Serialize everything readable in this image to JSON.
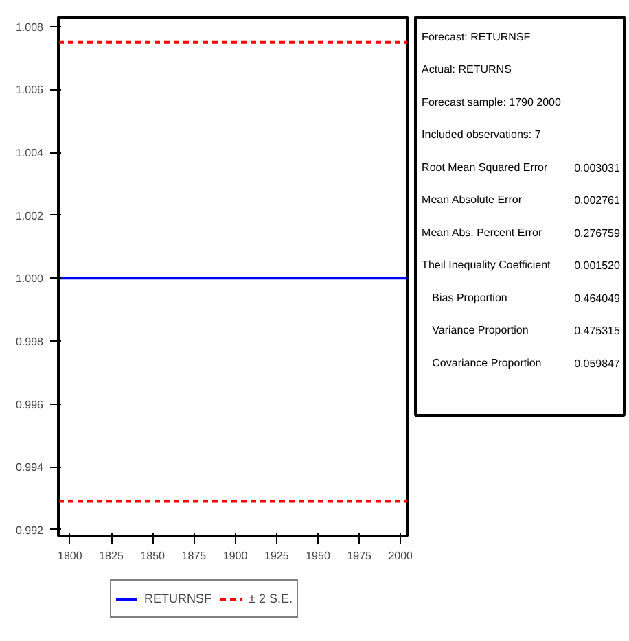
{
  "chart_data": {
    "type": "line",
    "x": [
      1793,
      2004
    ],
    "xlim": [
      1793,
      2004
    ],
    "xticks": [
      1800,
      1825,
      1850,
      1875,
      1900,
      1925,
      1950,
      1975,
      2000
    ],
    "ylim": [
      0.9918,
      1.0083
    ],
    "yticks": [
      0.992,
      0.994,
      0.996,
      0.998,
      {
        "value": 1.0,
        "label": "1.000"
      },
      1.002,
      1.004,
      1.006,
      1.008
    ],
    "series": [
      {
        "name": "RETURNSF",
        "color": "#0000ff",
        "values": [
          1.0,
          1.0
        ],
        "line_style": "solid"
      },
      {
        "name": "± 2 S.E.",
        "color": "#ff0000",
        "values": [
          1.0075,
          1.0075
        ],
        "line_style": "dashed"
      },
      {
        "color": "#ff0000",
        "values": [
          0.9929,
          0.9929
        ],
        "line_style": "dashed"
      }
    ],
    "legend": "bottom",
    "grid": false,
    "annotations": [
      "Forecast: RETURNSF",
      "Actual: RETURNS",
      "Forecast sample: 1790 2000",
      "Included observations: 7",
      "Root Mean Squared Error",
      "0.003031",
      "Mean Absolute Error",
      "0.002761",
      "Mean Abs. Percent Error",
      "0.276759",
      "Theil Inequality Coefficient",
      "0.001520",
      "Bias Proportion",
      "0.464049",
      "Variance Proportion",
      "0.475315",
      "Covariance Proportion",
      "0.059847"
    ]
  }
}
